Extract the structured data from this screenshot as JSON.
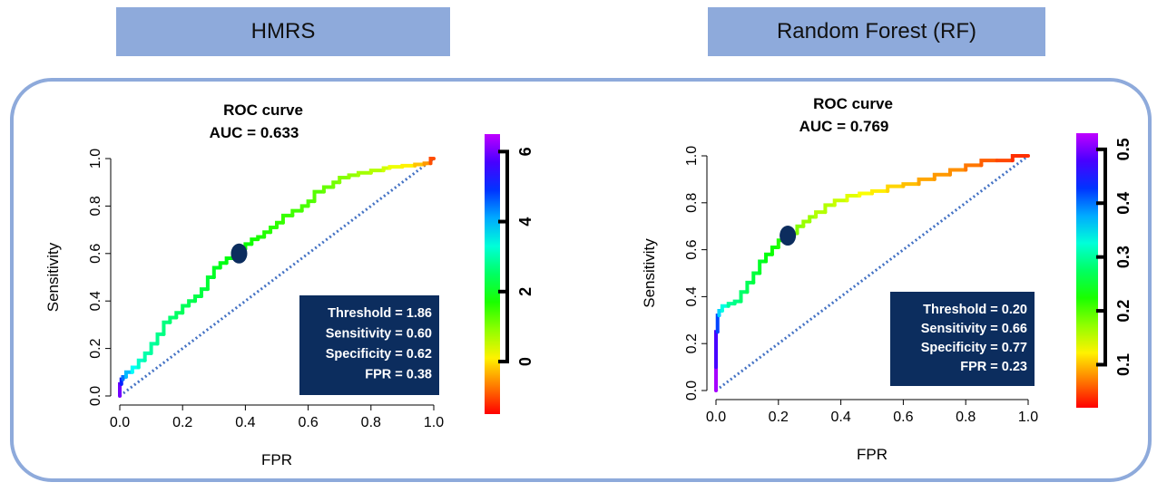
{
  "header": {
    "left_label": "HMRS",
    "right_label": "Random Forest (RF)"
  },
  "chart_data": [
    {
      "type": "line",
      "title": "ROC curve",
      "subtitle": "AUC = 0.633",
      "xlabel": "FPR",
      "ylabel": "Sensitivity",
      "xlim": [
        0,
        1
      ],
      "ylim": [
        0,
        1
      ],
      "xticks": [
        "0.0",
        "0.2",
        "0.4",
        "0.6",
        "0.8",
        "1.0"
      ],
      "yticks": [
        "0.0",
        "0.2",
        "0.4",
        "0.6",
        "0.8",
        "1.0"
      ],
      "grid": false,
      "series": [
        {
          "x": [
            0.0,
            0.005,
            0.01,
            0.02,
            0.04,
            0.06,
            0.08,
            0.1,
            0.12,
            0.14,
            0.16,
            0.18,
            0.2,
            0.22,
            0.24,
            0.26,
            0.28,
            0.3,
            0.32,
            0.34,
            0.36,
            0.38,
            0.4,
            0.42,
            0.44,
            0.46,
            0.48,
            0.5,
            0.52,
            0.55,
            0.58,
            0.6,
            0.62,
            0.65,
            0.68,
            0.7,
            0.73,
            0.76,
            0.8,
            0.84,
            0.86,
            0.9,
            0.94,
            0.97,
            0.99,
            1.0
          ],
          "y": [
            0.0,
            0.05,
            0.07,
            0.08,
            0.1,
            0.12,
            0.15,
            0.18,
            0.22,
            0.26,
            0.31,
            0.33,
            0.35,
            0.38,
            0.4,
            0.42,
            0.45,
            0.5,
            0.54,
            0.56,
            0.58,
            0.6,
            0.62,
            0.64,
            0.66,
            0.67,
            0.69,
            0.71,
            0.73,
            0.76,
            0.78,
            0.8,
            0.82,
            0.86,
            0.88,
            0.9,
            0.92,
            0.93,
            0.94,
            0.95,
            0.96,
            0.965,
            0.97,
            0.975,
            0.98,
            1.0
          ],
          "color_values": [
            6.0,
            5.0,
            4.5,
            4.0,
            3.5,
            3.2,
            3.0,
            2.9,
            2.8,
            2.7,
            2.6,
            2.5,
            2.45,
            2.4,
            2.35,
            2.3,
            2.2,
            2.1,
            2.0,
            1.95,
            1.9,
            1.86,
            1.8,
            1.75,
            1.7,
            1.65,
            1.6,
            1.55,
            1.5,
            1.45,
            1.4,
            1.35,
            1.3,
            1.2,
            1.1,
            1.0,
            0.9,
            0.8,
            0.7,
            0.5,
            0.3,
            0.1,
            -0.2,
            -0.5,
            -1.0,
            -1.5
          ]
        }
      ],
      "marker": {
        "x": 0.38,
        "y": 0.6,
        "color": "#0c2d5e"
      },
      "diagonal_color": "#4472c4",
      "stats_box": {
        "threshold": "Threshold = 1.86",
        "sensitivity": "Sensitivity = 0.60",
        "specificity": "Specificity = 0.62",
        "fpr": "FPR = 0.38",
        "background": "#0c2d5e"
      },
      "colorbar": {
        "range": [
          -1.5,
          6.5
        ],
        "ticks": [
          0,
          2,
          4,
          6
        ],
        "tick_labels": [
          "0",
          "2",
          "4",
          "6"
        ]
      }
    },
    {
      "type": "line",
      "title": "ROC curve",
      "subtitle": "AUC = 0.769",
      "xlabel": "FPR",
      "ylabel": "Sensitivity",
      "xlim": [
        0,
        1
      ],
      "ylim": [
        0,
        1
      ],
      "xticks": [
        "0.0",
        "0.2",
        "0.4",
        "0.6",
        "0.8",
        "1.0"
      ],
      "yticks": [
        "0.0",
        "0.2",
        "0.4",
        "0.6",
        "0.8",
        "1.0"
      ],
      "grid": false,
      "series": [
        {
          "x": [
            0.0,
            0.0,
            0.005,
            0.01,
            0.02,
            0.04,
            0.06,
            0.08,
            0.1,
            0.12,
            0.14,
            0.16,
            0.18,
            0.2,
            0.22,
            0.24,
            0.26,
            0.28,
            0.3,
            0.32,
            0.35,
            0.38,
            0.42,
            0.46,
            0.5,
            0.55,
            0.6,
            0.65,
            0.7,
            0.75,
            0.8,
            0.85,
            0.9,
            0.95,
            1.0
          ],
          "y": [
            0.0,
            0.1,
            0.25,
            0.32,
            0.34,
            0.36,
            0.37,
            0.38,
            0.42,
            0.46,
            0.5,
            0.55,
            0.58,
            0.61,
            0.64,
            0.66,
            0.67,
            0.7,
            0.72,
            0.74,
            0.76,
            0.79,
            0.81,
            0.83,
            0.84,
            0.85,
            0.87,
            0.88,
            0.9,
            0.92,
            0.94,
            0.96,
            0.98,
            0.98,
            1.0
          ],
          "color_values": [
            0.52,
            0.48,
            0.42,
            0.36,
            0.33,
            0.3,
            0.29,
            0.28,
            0.27,
            0.26,
            0.25,
            0.24,
            0.23,
            0.22,
            0.2,
            0.19,
            0.18,
            0.17,
            0.17,
            0.16,
            0.16,
            0.15,
            0.14,
            0.13,
            0.12,
            0.11,
            0.1,
            0.09,
            0.085,
            0.08,
            0.07,
            0.06,
            0.05,
            0.04,
            0.03
          ]
        }
      ],
      "marker": {
        "x": 0.23,
        "y": 0.66,
        "color": "#0c2d5e"
      },
      "diagonal_color": "#4472c4",
      "stats_box": {
        "threshold": "Threshold = 0.20",
        "sensitivity": "Sensitivity = 0.66",
        "specificity": "Specificity = 0.77",
        "fpr": "FPR = 0.23",
        "background": "#0c2d5e"
      },
      "colorbar": {
        "range": [
          0.02,
          0.53
        ],
        "ticks": [
          0.1,
          0.2,
          0.3,
          0.4,
          0.5
        ],
        "tick_labels": [
          "0.1",
          "0.2",
          "0.3",
          "0.4",
          "0.5"
        ]
      }
    }
  ]
}
